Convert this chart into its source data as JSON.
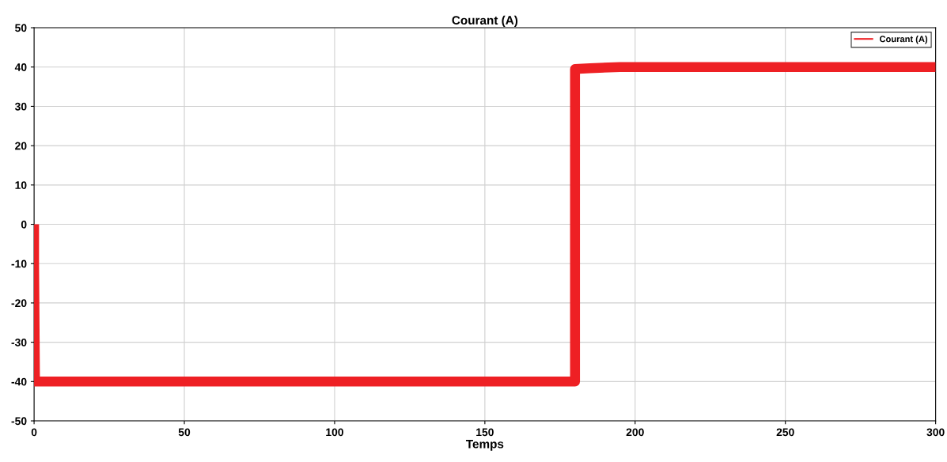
{
  "chart_data": {
    "type": "line",
    "title": "Courant (A)",
    "xlabel": "Temps",
    "series": [
      {
        "name": "Courant (A)",
        "color": "#ee2024",
        "x": [
          0,
          0,
          0.3,
          180,
          180,
          185,
          195,
          300
        ],
        "values": [
          0,
          -10,
          -40,
          -40,
          39.5,
          39.7,
          40,
          40
        ]
      }
    ],
    "xlim": [
      0,
      300
    ],
    "xticks": [
      0,
      50,
      100,
      150,
      200,
      250,
      300
    ],
    "ylim": [
      -50,
      50
    ],
    "yticks": [
      -50,
      -40,
      -30,
      -20,
      -10,
      0,
      10,
      20,
      30,
      40,
      50
    ],
    "grid": true,
    "legend": "top right",
    "marker": "none",
    "line_style": "solid"
  }
}
